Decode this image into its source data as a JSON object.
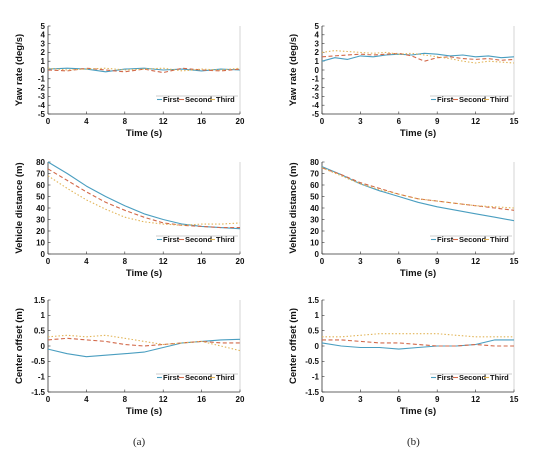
{
  "colors": {
    "first": "#4a9ec0",
    "second": "#d2694a",
    "third": "#e2b558",
    "axis": "#333333"
  },
  "captions": {
    "a": "(a)",
    "b": "(b)"
  },
  "chart_data": [
    {
      "id": "a-yaw",
      "type": "line",
      "xlabel": "Time (s)",
      "ylabel": "Yaw rate (deg/s)",
      "xlim": [
        0,
        20
      ],
      "ylim": [
        -5,
        5
      ],
      "xticks": [
        0,
        4,
        8,
        12,
        16,
        20
      ],
      "yticks": [
        5,
        4,
        3,
        2,
        1,
        0,
        -1,
        -2,
        -3,
        -4,
        -5
      ],
      "legend": [
        "First",
        "Second",
        "Third"
      ],
      "series": [
        {
          "name": "First",
          "style": "solid",
          "x": [
            0,
            2,
            4,
            6,
            8,
            10,
            12,
            14,
            16,
            18,
            20
          ],
          "y": [
            0.1,
            0.2,
            0.1,
            -0.2,
            0.1,
            0.2,
            0,
            0.1,
            -0.1,
            0.1,
            0
          ]
        },
        {
          "name": "Second",
          "style": "dashed",
          "x": [
            0,
            2,
            4,
            6,
            8,
            10,
            12,
            14,
            16,
            18,
            20
          ],
          "y": [
            0,
            -0.1,
            0.2,
            0,
            -0.2,
            0.1,
            -0.3,
            0.2,
            0,
            -0.1,
            0.1
          ]
        },
        {
          "name": "Third",
          "style": "dotted",
          "x": [
            0,
            2,
            4,
            6,
            8,
            10,
            12,
            14,
            16,
            18,
            20
          ],
          "y": [
            0.2,
            0,
            0.1,
            0.2,
            0,
            0.1,
            0.2,
            -0.1,
            0.1,
            0,
            0.2
          ]
        }
      ]
    },
    {
      "id": "b-yaw",
      "type": "line",
      "xlabel": "Time (s)",
      "ylabel": "Yaw rate (deg/s)",
      "xlim": [
        0,
        15
      ],
      "ylim": [
        -5,
        5
      ],
      "xticks": [
        0,
        3,
        6,
        9,
        12,
        15
      ],
      "yticks": [
        5,
        4,
        3,
        2,
        1,
        0,
        -1,
        -2,
        -3,
        -4,
        -5
      ],
      "legend": [
        "First",
        "Second",
        "Third"
      ],
      "series": [
        {
          "name": "First",
          "style": "solid",
          "x": [
            0,
            1,
            2,
            3,
            4,
            5,
            6,
            7,
            8,
            9,
            10,
            11,
            12,
            13,
            14,
            15
          ],
          "y": [
            1,
            1.4,
            1.2,
            1.6,
            1.5,
            1.7,
            1.8,
            1.7,
            1.9,
            1.8,
            1.6,
            1.7,
            1.5,
            1.6,
            1.4,
            1.5
          ]
        },
        {
          "name": "Second",
          "style": "dashed",
          "x": [
            0,
            1,
            2,
            3,
            4,
            5,
            6,
            7,
            8,
            9,
            10,
            11,
            12,
            13,
            14,
            15
          ],
          "y": [
            1.5,
            1.6,
            1.7,
            1.8,
            1.7,
            1.8,
            1.9,
            1.6,
            1,
            1.4,
            1.5,
            1.3,
            1.2,
            1.3,
            1.1,
            1.2
          ]
        },
        {
          "name": "Third",
          "style": "dotted",
          "x": [
            0,
            1,
            2,
            3,
            4,
            5,
            6,
            7,
            8,
            9,
            10,
            11,
            12,
            13,
            14,
            15
          ],
          "y": [
            2,
            2.2,
            2.1,
            2,
            1.9,
            2,
            1.8,
            1.9,
            1.7,
            1.5,
            1.3,
            1,
            0.8,
            1,
            0.9,
            0.8
          ]
        }
      ]
    },
    {
      "id": "a-dist",
      "type": "line",
      "xlabel": "Time (s)",
      "ylabel": "Vehicle distance (m)",
      "xlim": [
        0,
        20
      ],
      "ylim": [
        0,
        80
      ],
      "xticks": [
        0,
        4,
        8,
        12,
        16,
        20
      ],
      "yticks": [
        80,
        70,
        60,
        50,
        40,
        30,
        20,
        10,
        0
      ],
      "legend": [
        "First",
        "Second",
        "Third"
      ],
      "series": [
        {
          "name": "First",
          "style": "solid",
          "x": [
            0,
            2,
            4,
            6,
            8,
            10,
            12,
            14,
            16,
            18,
            20
          ],
          "y": [
            80,
            70,
            59,
            50,
            42,
            35,
            30,
            26,
            24,
            23,
            22
          ]
        },
        {
          "name": "Second",
          "style": "dashed",
          "x": [
            0,
            2,
            4,
            6,
            8,
            10,
            12,
            14,
            16,
            18,
            20
          ],
          "y": [
            74,
            64,
            54,
            45,
            38,
            32,
            27,
            25,
            24,
            23,
            23
          ]
        },
        {
          "name": "Third",
          "style": "dotted",
          "x": [
            0,
            2,
            4,
            6,
            8,
            10,
            12,
            14,
            16,
            18,
            20
          ],
          "y": [
            68,
            57,
            47,
            39,
            32,
            28,
            26,
            25,
            26,
            26,
            27
          ]
        }
      ]
    },
    {
      "id": "b-dist",
      "type": "line",
      "xlabel": "Time (s)",
      "ylabel": "Vehicle distance (m)",
      "xlim": [
        0,
        15
      ],
      "ylim": [
        0,
        80
      ],
      "xticks": [
        0,
        3,
        6,
        9,
        12,
        15
      ],
      "yticks": [
        80,
        70,
        60,
        50,
        40,
        30,
        20,
        10,
        0
      ],
      "legend": [
        "First",
        "Second",
        "Third"
      ],
      "series": [
        {
          "name": "First",
          "style": "solid",
          "x": [
            0,
            1.5,
            3,
            4.5,
            6,
            7.5,
            9,
            10.5,
            12,
            13.5,
            15
          ],
          "y": [
            76,
            69,
            61,
            55,
            50,
            45,
            41,
            38,
            35,
            32,
            29
          ]
        },
        {
          "name": "Second",
          "style": "dashed",
          "x": [
            0,
            1.5,
            3,
            4.5,
            6,
            7.5,
            9,
            10.5,
            12,
            13.5,
            15
          ],
          "y": [
            75,
            69,
            62,
            57,
            52,
            48,
            46,
            44,
            42,
            40,
            38
          ]
        },
        {
          "name": "Third",
          "style": "dotted",
          "x": [
            0,
            1.5,
            3,
            4.5,
            6,
            7.5,
            9,
            10.5,
            12,
            13.5,
            15
          ],
          "y": [
            75,
            68,
            61,
            56,
            52,
            48,
            46,
            44,
            42,
            41,
            40
          ]
        }
      ]
    },
    {
      "id": "a-offset",
      "type": "line",
      "xlabel": "Time (s)",
      "ylabel": "Center offset (m)",
      "xlim": [
        0,
        20
      ],
      "ylim": [
        -1.5,
        1.5
      ],
      "xticks": [
        0,
        4,
        8,
        12,
        16,
        20
      ],
      "yticks": [
        1.5,
        1,
        0.5,
        0,
        -0.5,
        -1,
        -1.5
      ],
      "legend": [
        "First",
        "Second",
        "Third"
      ],
      "series": [
        {
          "name": "First",
          "style": "solid",
          "x": [
            0,
            2,
            4,
            6,
            8,
            10,
            12,
            14,
            16,
            18,
            20
          ],
          "y": [
            -0.1,
            -0.25,
            -0.35,
            -0.3,
            -0.25,
            -0.2,
            -0.05,
            0.1,
            0.15,
            0.2,
            0.22
          ]
        },
        {
          "name": "Second",
          "style": "dashed",
          "x": [
            0,
            2,
            4,
            6,
            8,
            10,
            12,
            14,
            16,
            18,
            20
          ],
          "y": [
            0.2,
            0.25,
            0.2,
            0.15,
            0.05,
            0,
            0.05,
            0.1,
            0.15,
            0.1,
            0.1
          ]
        },
        {
          "name": "Third",
          "style": "dotted",
          "x": [
            0,
            2,
            4,
            6,
            8,
            10,
            12,
            14,
            16,
            18,
            20
          ],
          "y": [
            0.3,
            0.35,
            0.3,
            0.35,
            0.25,
            0.15,
            0.05,
            0.1,
            0.15,
            0,
            -0.15
          ]
        }
      ]
    },
    {
      "id": "b-offset",
      "type": "line",
      "xlabel": "Time (s)",
      "ylabel": "Center offset (m)",
      "xlim": [
        0,
        15
      ],
      "ylim": [
        -1.5,
        1.5
      ],
      "xticks": [
        0,
        3,
        6,
        9,
        12,
        15
      ],
      "yticks": [
        1.5,
        1,
        0.5,
        0,
        -0.5,
        -1,
        -1.5
      ],
      "legend": [
        "First",
        "Second",
        "Third"
      ],
      "series": [
        {
          "name": "First",
          "style": "solid",
          "x": [
            0,
            1.5,
            3,
            4.5,
            6,
            7.5,
            9,
            10.5,
            12,
            13.5,
            15
          ],
          "y": [
            0.1,
            0,
            -0.05,
            -0.05,
            -0.1,
            -0.05,
            0,
            0,
            0.05,
            0.2,
            0.2
          ]
        },
        {
          "name": "Second",
          "style": "dashed",
          "x": [
            0,
            1.5,
            3,
            4.5,
            6,
            7.5,
            9,
            10.5,
            12,
            13.5,
            15
          ],
          "y": [
            0.2,
            0.2,
            0.15,
            0.1,
            0.1,
            0.05,
            0,
            0,
            0.05,
            0,
            0
          ]
        },
        {
          "name": "Third",
          "style": "dotted",
          "x": [
            0,
            1.5,
            3,
            4.5,
            6,
            7.5,
            9,
            10.5,
            12,
            13.5,
            15
          ],
          "y": [
            0.3,
            0.3,
            0.35,
            0.4,
            0.4,
            0.4,
            0.4,
            0.35,
            0.3,
            0.3,
            0.3
          ]
        }
      ]
    }
  ]
}
